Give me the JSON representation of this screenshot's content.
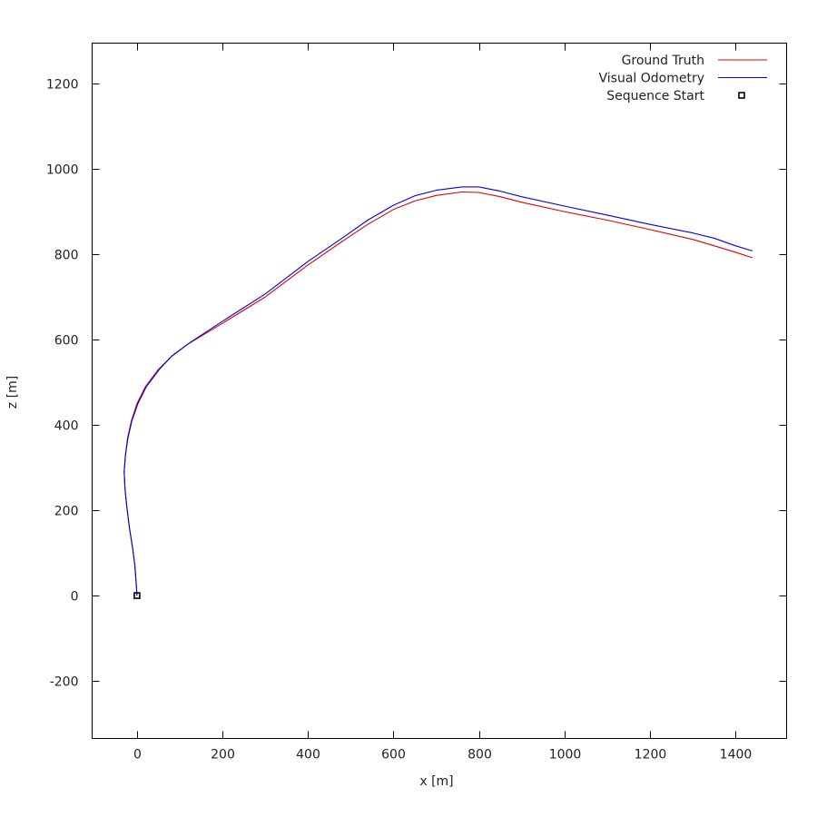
{
  "chart_data": {
    "type": "line",
    "title": "",
    "xlabel": "x [m]",
    "ylabel": "z [m]",
    "xlim": [
      -105,
      1520
    ],
    "ylim": [
      -335,
      1295
    ],
    "xticks": [
      0,
      200,
      400,
      600,
      800,
      1000,
      1200,
      1400
    ],
    "yticks": [
      -200,
      0,
      200,
      400,
      600,
      800,
      1000,
      1200
    ],
    "grid": false,
    "legend_position": "top-right",
    "series": [
      {
        "name": "Ground Truth",
        "color": "#e00000",
        "points": [
          [
            0,
            0
          ],
          [
            -2,
            30
          ],
          [
            -5,
            70
          ],
          [
            -10,
            110
          ],
          [
            -18,
            160
          ],
          [
            -24,
            210
          ],
          [
            -28,
            250
          ],
          [
            -30,
            290
          ],
          [
            -27,
            330
          ],
          [
            -22,
            370
          ],
          [
            -13,
            410
          ],
          [
            0,
            450
          ],
          [
            20,
            490
          ],
          [
            50,
            530
          ],
          [
            80,
            560
          ],
          [
            120,
            590
          ],
          [
            200,
            638
          ],
          [
            300,
            700
          ],
          [
            400,
            775
          ],
          [
            480,
            830
          ],
          [
            540,
            870
          ],
          [
            600,
            905
          ],
          [
            650,
            925
          ],
          [
            700,
            938
          ],
          [
            760,
            946
          ],
          [
            800,
            945
          ],
          [
            850,
            935
          ],
          [
            900,
            922
          ],
          [
            1000,
            900
          ],
          [
            1100,
            880
          ],
          [
            1200,
            858
          ],
          [
            1300,
            835
          ],
          [
            1350,
            820
          ],
          [
            1400,
            805
          ],
          [
            1440,
            792
          ]
        ]
      },
      {
        "name": "Visual Odometry",
        "color": "#0000e0",
        "points": [
          [
            0,
            0
          ],
          [
            -2,
            30
          ],
          [
            -5,
            70
          ],
          [
            -10,
            110
          ],
          [
            -18,
            160
          ],
          [
            -24,
            210
          ],
          [
            -28,
            250
          ],
          [
            -30,
            290
          ],
          [
            -27,
            330
          ],
          [
            -21,
            370
          ],
          [
            -12,
            410
          ],
          [
            2,
            450
          ],
          [
            22,
            490
          ],
          [
            52,
            530
          ],
          [
            82,
            562
          ],
          [
            122,
            592
          ],
          [
            200,
            643
          ],
          [
            300,
            707
          ],
          [
            400,
            783
          ],
          [
            480,
            838
          ],
          [
            540,
            880
          ],
          [
            600,
            915
          ],
          [
            650,
            937
          ],
          [
            700,
            950
          ],
          [
            760,
            958
          ],
          [
            800,
            958
          ],
          [
            850,
            948
          ],
          [
            900,
            935
          ],
          [
            1000,
            913
          ],
          [
            1100,
            892
          ],
          [
            1200,
            870
          ],
          [
            1300,
            850
          ],
          [
            1350,
            838
          ],
          [
            1400,
            820
          ],
          [
            1440,
            808
          ]
        ]
      }
    ],
    "markers": [
      {
        "name": "Sequence Start",
        "x": 0,
        "y": 0,
        "shape": "square"
      }
    ]
  }
}
